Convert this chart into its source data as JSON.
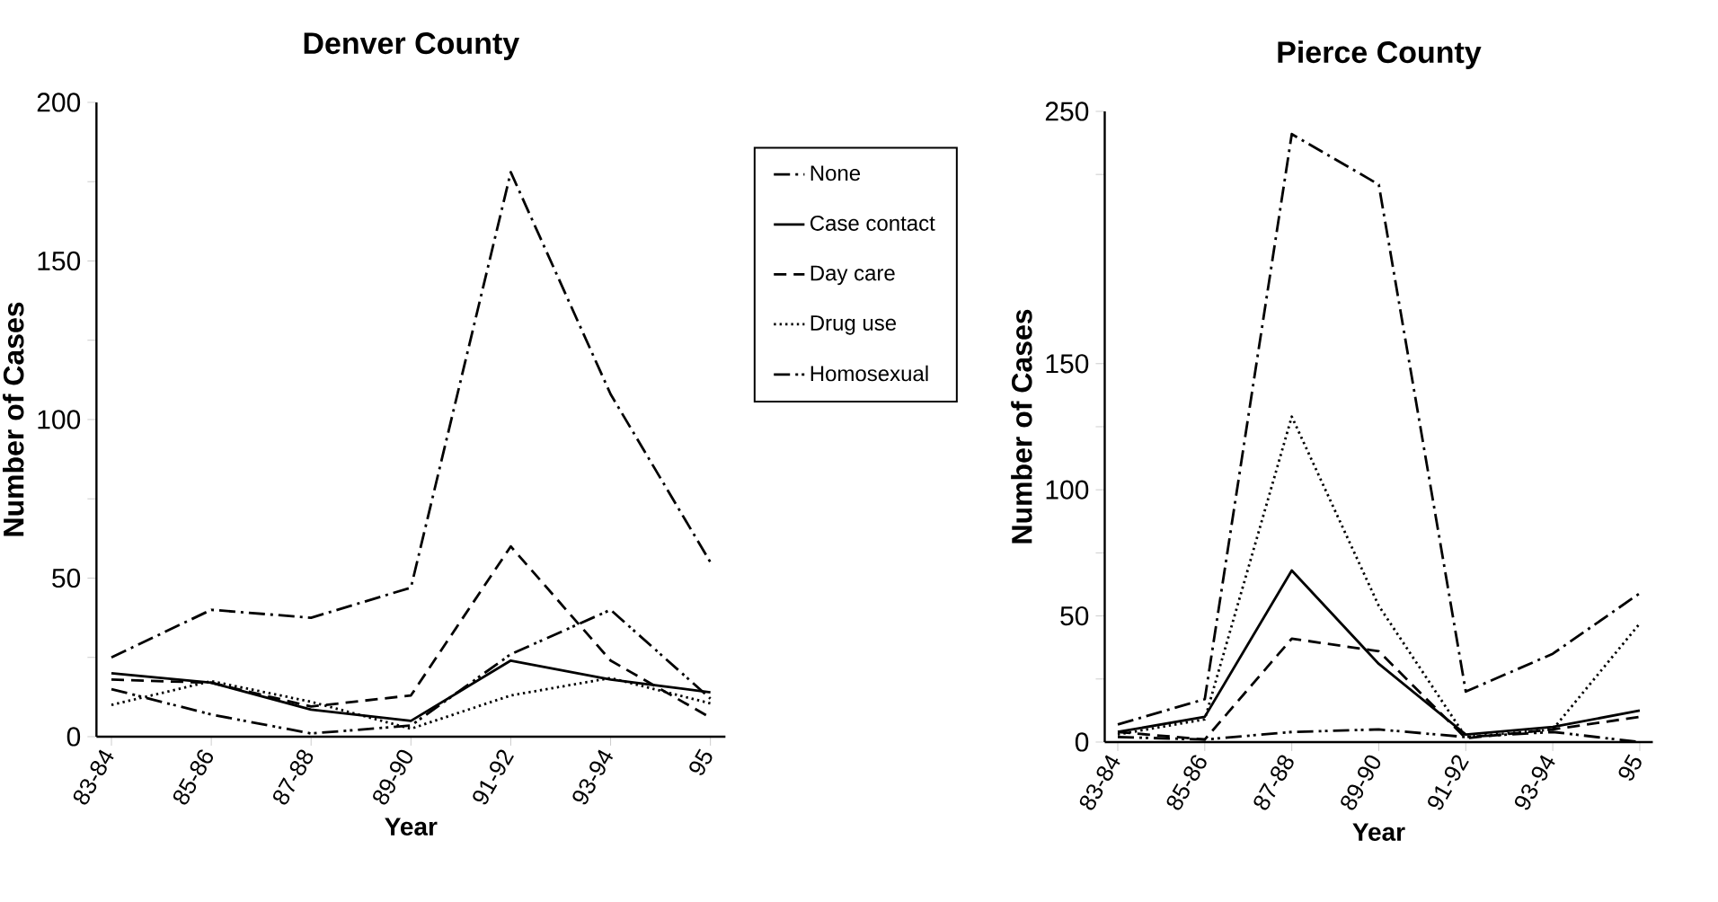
{
  "chart_data": [
    {
      "type": "line",
      "title": "Denver County",
      "xlabel": "Year",
      "ylabel": "Number of Cases",
      "categories": [
        "83-84",
        "85-86",
        "87-88",
        "89-90",
        "91-92",
        "93-94",
        "95"
      ],
      "ylim": [
        0,
        200
      ],
      "yticks": [
        0,
        {
          "value": 25,
          "label": null
        },
        50,
        {
          "value": 75,
          "label": null
        },
        100,
        {
          "value": 125,
          "label": null
        },
        150,
        {
          "value": 175,
          "label": null
        },
        200
      ],
      "legend": "right",
      "series": [
        {
          "name": "None",
          "color": "#000000",
          "line_style": "dashdot",
          "values": [
            25,
            40,
            37.5,
            47,
            178,
            108,
            55
          ]
        },
        {
          "name": "Case contact",
          "color": "#000000",
          "line_style": "solid",
          "values": [
            20,
            17,
            8.5,
            5,
            24,
            18,
            14
          ]
        },
        {
          "name": "Day care",
          "color": "#000000",
          "line_style": "dashed",
          "values": [
            18,
            17,
            9.5,
            13,
            60,
            24,
            6
          ]
        },
        {
          "name": "Drug use",
          "color": "#000000",
          "line_style": "dotted",
          "values": [
            10,
            17.5,
            11,
            2.5,
            13,
            18.5,
            10.5
          ]
        },
        {
          "name": "Homosexual",
          "color": "#000000",
          "line_style": "dashdotdot",
          "values": [
            15,
            7,
            1,
            3.5,
            26,
            40,
            12
          ]
        }
      ]
    },
    {
      "type": "line",
      "title": "Pierce County",
      "xlabel": "Year",
      "ylabel": "Number of Cases",
      "categories": [
        "83-84",
        "85-86",
        "87-88",
        "89-90",
        "91-92",
        "93-94",
        "95"
      ],
      "ylim": [
        0,
        250
      ],
      "yticks": [
        0,
        {
          "value": 25,
          "label": null
        },
        50,
        {
          "value": 75,
          "label": null
        },
        100,
        {
          "value": 125,
          "label": null
        },
        150,
        {
          "value": 225,
          "label": null
        },
        250
      ],
      "series": [
        {
          "color": "#000000",
          "line_style": "dashdot",
          "values": [
            7,
            17,
            241,
            221,
            20,
            35,
            59
          ]
        },
        {
          "color": "#000000",
          "line_style": "solid",
          "values": [
            4,
            10,
            68,
            31,
            3,
            6,
            12.5
          ]
        },
        {
          "color": "#000000",
          "line_style": "dashed",
          "values": [
            4,
            1,
            41,
            36,
            1.5,
            5,
            10
          ]
        },
        {
          "color": "#000000",
          "line_style": "dotted",
          "values": [
            3,
            9,
            129,
            54,
            2,
            5,
            47
          ]
        },
        {
          "color": "#000000",
          "line_style": "dashdotdot",
          "values": [
            2,
            1,
            4,
            5,
            2,
            4,
            0
          ]
        }
      ]
    }
  ]
}
